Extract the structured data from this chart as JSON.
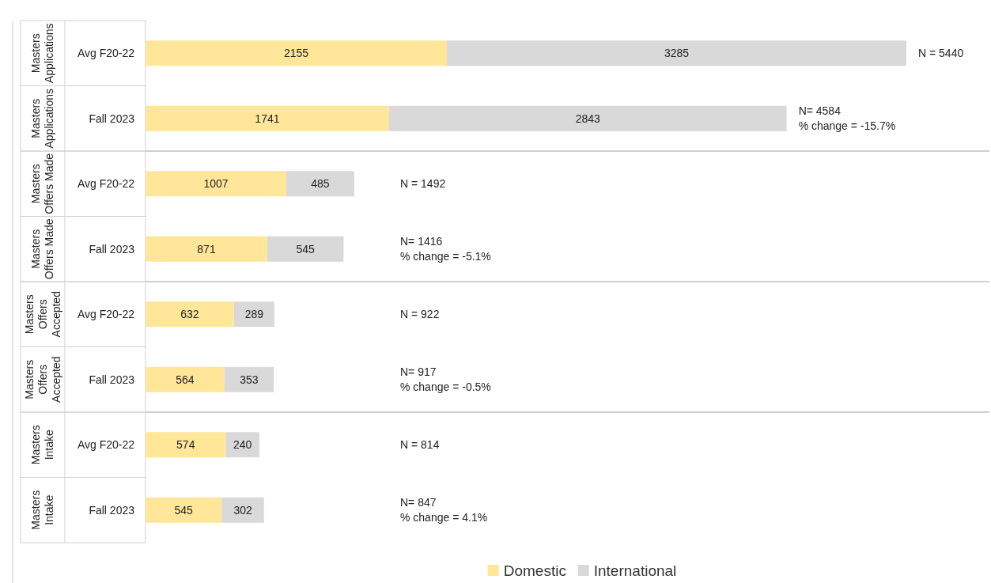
{
  "chart_data": {
    "type": "bar",
    "orientation": "horizontal",
    "stacked": true,
    "data_labels": true,
    "legend": "bottom",
    "categories": [
      "Avg F20-22",
      "Fall 2023",
      "Avg F20-22",
      "Fall 2023",
      "Avg F20-22",
      "Fall 2023",
      "Avg F20-22",
      "Fall 2023"
    ],
    "series": [
      {
        "name": "Domestic",
        "color": "#ffe699",
        "values": [
          2155,
          1741,
          1007,
          871,
          632,
          564,
          574,
          545
        ]
      },
      {
        "name": "International",
        "color": "#d9d9d9",
        "values": [
          3285,
          2843,
          485,
          545,
          289,
          353,
          240,
          302
        ]
      }
    ],
    "annotations": [
      "Masters\nApplications",
      "Masters\nApplications",
      "Masters\nOffers Made",
      "Masters\nOffers Made",
      "Masters\nOffers\nAccepted",
      "Masters\nOffers\nAccepted",
      "Masters\nIntake",
      "Masters\nIntake",
      "N = 5440",
      "N= 4584\n% change = -15.7%",
      "N = 1492",
      "N= 1416\n% change = -5.1%",
      "N = 922",
      "N= 917\n% change = -0.5%",
      "N = 814",
      "N= 847\n% change = 4.1%"
    ]
  }
}
